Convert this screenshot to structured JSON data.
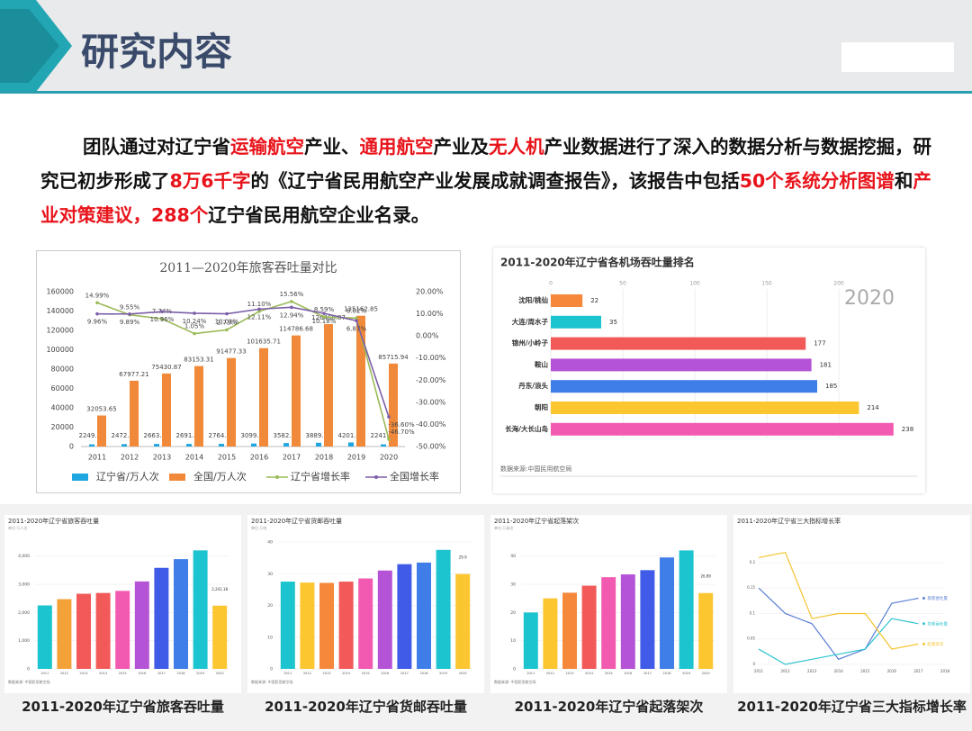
{
  "header": {
    "title": "研究内容"
  },
  "highlight_color": "#e8141b",
  "paragraph": [
    {
      "text": "团队通过对辽宁省"
    },
    {
      "text": "运输航空",
      "highlight": true
    },
    {
      "text": "产业、"
    },
    {
      "text": "通用航空",
      "highlight": true
    },
    {
      "text": "产业及"
    },
    {
      "text": "无人机",
      "highlight": true
    },
    {
      "text": "产业数据进行了深入的数据分析与数据挖掘，研究已初步形成了"
    },
    {
      "text": "8万6千字",
      "highlight": true
    },
    {
      "text": "的《辽宁省民用航空产业发展成就调查报告》，该报告中包括"
    },
    {
      "text": "50个系统分析图谱",
      "highlight": true
    },
    {
      "text": "和"
    },
    {
      "text": "产业对策建议，288个",
      "highlight": true
    },
    {
      "text": "辽宁省民用航空企业名录。"
    }
  ],
  "captions": [
    "2011-2020年辽宁省旅客吞吐量",
    "2011-2020年辽宁省货邮吞吐量",
    "2011-2020年辽宁省起落架次",
    "2011-2020年辽宁省三大指标增长率"
  ],
  "chart_data": [
    {
      "type": "combo",
      "title": "2011—2020年旅客吞吐量对比",
      "categories": [
        "2011",
        "2012",
        "2013",
        "2014",
        "2015",
        "2016",
        "2017",
        "2018",
        "2019",
        "2020"
      ],
      "series": [
        {
          "name": "辽宁省/万人次",
          "kind": "bar",
          "color": "#1fa5e0",
          "values": [
            2249.77,
            2472.18,
            2663.43,
            2691.45,
            2764.93,
            3099.89,
            3582.16,
            3889.77,
            4201.88,
            2241.18
          ]
        },
        {
          "name": "全国/万人次",
          "kind": "bar",
          "color": "#f08a3a",
          "values": [
            32053.65,
            67977.21,
            75430.87,
            83153.31,
            91477.33,
            101635.71,
            114786.68,
            126468.87,
            135162.85,
            85715.94
          ]
        },
        {
          "name": "辽宁省增长率",
          "kind": "line",
          "axis": "y2",
          "color": "#9bbb59",
          "values": [
            14.99,
            9.55,
            7.74,
            1.05,
            2.73,
            11.1,
            15.56,
            8.59,
            8.02,
            -46.7
          ],
          "value_labels": [
            "14.99%",
            "9.55%",
            "7.74%",
            "1.05%",
            "2.73%",
            "11.10%",
            "15.56%",
            "8.59%",
            "8.02%",
            "-46.70%"
          ]
        },
        {
          "name": "全国增长率",
          "kind": "line",
          "axis": "y2",
          "color": "#7b5ea7",
          "values": [
            9.96,
            9.89,
            10.96,
            10.24,
            10.01,
            12.11,
            12.94,
            10.18,
            6.87,
            -36.6
          ],
          "value_labels": [
            "9.96%",
            "9.89%",
            "10.96%",
            "10.24%",
            "10.01%",
            "12.11%",
            "12.94%",
            "10.18%",
            "6.87%",
            "-36.60%"
          ]
        }
      ],
      "ylim": [
        0,
        160000
      ],
      "yticks": [
        0,
        20000,
        40000,
        60000,
        80000,
        100000,
        120000,
        140000,
        160000
      ],
      "y2lim": [
        -50,
        20
      ],
      "y2ticks": [
        {
          "value": -50,
          "label": "-50.00%"
        },
        {
          "value": -40,
          "label": "-40.00%"
        },
        {
          "value": -30,
          "label": "-30.00%"
        },
        {
          "value": -20,
          "label": "-20.00%"
        },
        {
          "value": -10,
          "label": "-10.00%"
        },
        {
          "value": 0,
          "label": "0.00%"
        },
        {
          "value": 10,
          "label": "10.00%"
        },
        {
          "value": 20,
          "label": "20.00%"
        }
      ]
    },
    {
      "type": "hbar",
      "title": "2011-2020年辽宁省各机场吞吐量排名",
      "annotation": "2020",
      "source": "数据来源:中国民用航空局",
      "categories": [
        "沈阳/桃仙",
        "大连/周水子",
        "锦州/小岭子",
        "鞍山",
        "丹东/浪头",
        "朝阳",
        "长海/大长山岛"
      ],
      "values": [
        22,
        35,
        177,
        181,
        185,
        214,
        238
      ],
      "colors": [
        "#f5883a",
        "#1cc4d0",
        "#f25a5a",
        "#b553d6",
        "#3f7de8",
        "#fcc631",
        "#f25ab1"
      ],
      "xlim": [
        0,
        255
      ],
      "xticks": [
        0,
        50,
        100,
        150,
        200
      ]
    },
    {
      "type": "bar",
      "title": "2011-2020年辽宁省旅客吞吐量",
      "unit": "单位:万人次",
      "source": "数据来源: 中国民用航空局",
      "categories": [
        "2011",
        "2012",
        "2013",
        "2014",
        "2015",
        "2016",
        "2017",
        "2018",
        "2019",
        "2020"
      ],
      "values": [
        2249.77,
        2472.18,
        2663.43,
        2691.45,
        2764.93,
        3099.89,
        3582.16,
        3889.77,
        4201.88,
        2241.18
      ],
      "value_labels": [
        null,
        null,
        null,
        null,
        null,
        null,
        null,
        null,
        null,
        "2,241.18"
      ],
      "colors": [
        "#1cc4d0",
        "#f5a13a",
        "#f25a5a",
        "#f25a5a",
        "#f25ab1",
        "#b553d6",
        "#3f5be8",
        "#3f7de8",
        "#1cc4d0",
        "#fcc631"
      ],
      "ylim": [
        0,
        4500
      ],
      "yticks": [
        0,
        {
          "value": 1000,
          "label": "1,000"
        },
        {
          "value": 2000,
          "label": "2,000"
        },
        {
          "value": 3000,
          "label": "3,000"
        },
        {
          "value": 4000,
          "label": "4,000"
        }
      ]
    },
    {
      "type": "bar",
      "title": "2011-2020年辽宁省货邮吞吐量",
      "unit": "单位:万吨",
      "source": "数据来源: 中国民用航空局",
      "categories": [
        "2011",
        "2012",
        "2013",
        "2014",
        "2015",
        "2016",
        "2017",
        "2018",
        "2019",
        "2020"
      ],
      "values": [
        27.5,
        27.2,
        27.1,
        27.5,
        28.5,
        31,
        33,
        33.5,
        37.5,
        29.9
      ],
      "value_labels": [
        null,
        null,
        null,
        null,
        null,
        null,
        null,
        null,
        null,
        "29.9"
      ],
      "colors": [
        "#1cc4d0",
        "#fcc631",
        "#f5883a",
        "#f25a5a",
        "#f25ab1",
        "#b553d6",
        "#3f5be8",
        "#3f7de8",
        "#1cc4d0",
        "#fcc631"
      ],
      "ylim": [
        0,
        40
      ],
      "yticks": [
        0,
        10,
        20,
        30,
        40
      ]
    },
    {
      "type": "bar",
      "title": "2011-2020年辽宁省起落架次",
      "unit": "单位:万架次",
      "source": "数据来源: 中国民用航空局",
      "categories": [
        "2011",
        "2012",
        "2013",
        "2014",
        "2015",
        "2016",
        "2017",
        "2018",
        "2019",
        "2020"
      ],
      "values": [
        20,
        25,
        27,
        29.5,
        32.5,
        33.5,
        35,
        39.5,
        42,
        26.89
      ],
      "value_labels": [
        null,
        null,
        null,
        null,
        null,
        null,
        null,
        null,
        null,
        "26.89"
      ],
      "colors": [
        "#1cc4d0",
        "#fcc631",
        "#f5883a",
        "#f25a5a",
        "#f25ab1",
        "#b553d6",
        "#3f5be8",
        "#3f7de8",
        "#1cc4d0",
        "#fcc631"
      ],
      "ylim": [
        0,
        45
      ],
      "yticks": [
        0,
        10,
        20,
        30,
        40
      ]
    },
    {
      "type": "line",
      "title": "2011-2020年辽宁省三大指标增长率",
      "categories": [
        "2011",
        "2012",
        "2013",
        "2014",
        "2015",
        "2016",
        "2017",
        "2018"
      ],
      "series": [
        {
          "name": "旅客吞吐量",
          "color": "#5b7fd6",
          "values": [
            0.15,
            0.1,
            0.08,
            0.01,
            0.03,
            0.12,
            0.13,
            null
          ]
        },
        {
          "name": "货邮吞吐量",
          "color": "#2ec3cf",
          "values": [
            0.03,
            0,
            0.01,
            0.02,
            0.03,
            0.09,
            0.08,
            null
          ]
        },
        {
          "name": "起落架次",
          "color": "#f5c431",
          "values": [
            0.21,
            0.22,
            0.09,
            0.1,
            0.1,
            0.03,
            0.04,
            null
          ]
        }
      ],
      "ylim": [
        0,
        0.23
      ],
      "yticks": [
        0,
        0.05,
        0.1,
        0.15,
        0.2
      ]
    }
  ]
}
